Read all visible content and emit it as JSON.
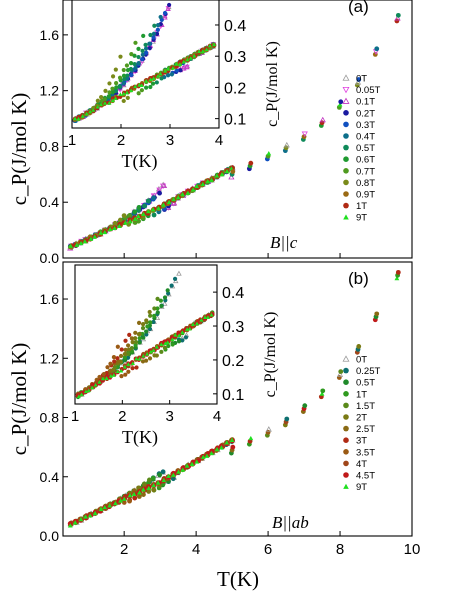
{
  "figure": {
    "xlabel": "T(K)",
    "xticks": [
      "2",
      "4",
      "6",
      "8",
      "10"
    ],
    "xlim": [
      0.3,
      10.0
    ]
  },
  "chart_data": [
    {
      "id": "a",
      "type": "scatter",
      "panel_label": "(a)",
      "field_annotation": "B||c",
      "ylabel": "c_P(J/mol K)",
      "ylim": [
        0.0,
        1.85
      ],
      "yticks": [
        "0.0",
        "0.4",
        "0.8",
        "1.2",
        "1.6"
      ],
      "legend_position": "right",
      "series": [
        {
          "name": "0T",
          "color": "#9a9a9a",
          "marker": "tri-up-open"
        },
        {
          "name": "0.05T",
          "color": "#e040e0",
          "marker": "tri-down-open"
        },
        {
          "name": "0.1T",
          "color": "#c030c0",
          "marker": "tri-up-open"
        },
        {
          "name": "0.2T",
          "color": "#1a1aa0",
          "marker": "circle"
        },
        {
          "name": "0.3T",
          "color": "#1050c0",
          "marker": "circle"
        },
        {
          "name": "0.4T",
          "color": "#0d6f8a",
          "marker": "circle"
        },
        {
          "name": "0.5T",
          "color": "#0f8a5a",
          "marker": "circle"
        },
        {
          "name": "0.6T",
          "color": "#1f9a30",
          "marker": "circle"
        },
        {
          "name": "0.7T",
          "color": "#4f9a1f",
          "marker": "circle"
        },
        {
          "name": "0.8T",
          "color": "#7a8a1a",
          "marker": "circle"
        },
        {
          "name": "0.9T",
          "color": "#9a6a14",
          "marker": "circle"
        },
        {
          "name": "1T",
          "color": "#b02a14",
          "marker": "circle"
        },
        {
          "name": "9T",
          "color": "#20e020",
          "marker": "tri-up"
        }
      ],
      "main_points": [
        {
          "x": 0.55,
          "y": 0.05
        },
        {
          "x": 0.75,
          "y": 0.07
        },
        {
          "x": 1.0,
          "y": 0.1
        },
        {
          "x": 1.3,
          "y": 0.14
        },
        {
          "x": 1.6,
          "y": 0.18
        },
        {
          "x": 1.9,
          "y": 0.22
        },
        {
          "x": 2.2,
          "y": 0.26
        },
        {
          "x": 2.5,
          "y": 0.3
        },
        {
          "x": 2.8,
          "y": 0.34
        },
        {
          "x": 3.0,
          "y": 0.38
        },
        {
          "x": 3.2,
          "y": 0.38
        },
        {
          "x": 3.5,
          "y": 0.41
        },
        {
          "x": 3.8,
          "y": 0.45
        },
        {
          "x": 4.1,
          "y": 0.48
        },
        {
          "x": 4.5,
          "y": 0.54
        },
        {
          "x": 5.0,
          "y": 0.6
        },
        {
          "x": 5.5,
          "y": 0.66
        },
        {
          "x": 6.0,
          "y": 0.73
        },
        {
          "x": 6.5,
          "y": 0.79
        },
        {
          "x": 7.0,
          "y": 0.87
        },
        {
          "x": 7.5,
          "y": 0.97
        },
        {
          "x": 8.0,
          "y": 1.1
        },
        {
          "x": 8.5,
          "y": 1.26
        },
        {
          "x": 9.0,
          "y": 1.48
        },
        {
          "x": 9.6,
          "y": 1.72
        }
      ],
      "peaks": [
        {
          "field": "0T",
          "Tc": 3.2,
          "height": 0.56
        },
        {
          "field": "0.05T",
          "Tc": 3.2,
          "height": 0.55
        },
        {
          "field": "0.1T",
          "Tc": 3.15,
          "height": 0.53
        },
        {
          "field": "0.2T",
          "Tc": 3.05,
          "height": 0.49
        },
        {
          "field": "0.3T",
          "Tc": 2.95,
          "height": 0.46
        },
        {
          "field": "0.4T",
          "Tc": 2.85,
          "height": 0.44
        },
        {
          "field": "0.5T",
          "Tc": 2.7,
          "height": 0.41
        },
        {
          "field": "0.6T",
          "Tc": 2.5,
          "height": 0.38
        },
        {
          "field": "0.7T",
          "Tc": 2.3,
          "height": 0.34
        },
        {
          "field": "0.8T",
          "Tc": 2.0,
          "height": 0.3
        }
      ],
      "inset": {
        "xlabel": "T(K)",
        "ylabel": "c_P(J/mol K)",
        "xlim": [
          1.0,
          4.0
        ],
        "ylim": [
          0.07,
          0.48
        ],
        "xticks": [
          "1",
          "2",
          "3",
          "4"
        ],
        "yticks": [
          "0.1",
          "0.2",
          "0.3",
          "0.4"
        ]
      }
    },
    {
      "id": "b",
      "type": "scatter",
      "panel_label": "(b)",
      "field_annotation": "B||ab",
      "ylabel": "c_P(J/mol K)",
      "ylim": [
        0.0,
        1.85
      ],
      "yticks": [
        "0.0",
        "0.4",
        "0.8",
        "1.2",
        "1.6"
      ],
      "legend_position": "right",
      "series": [
        {
          "name": "0T",
          "color": "#9a9a9a",
          "marker": "tri-up-open"
        },
        {
          "name": "0.25T",
          "color": "#0d6f6f",
          "marker": "circle"
        },
        {
          "name": "0.5T",
          "color": "#1f8a2a",
          "marker": "circle"
        },
        {
          "name": "1T",
          "color": "#2f9a1f",
          "marker": "circle"
        },
        {
          "name": "1.5T",
          "color": "#5a8a1a",
          "marker": "circle"
        },
        {
          "name": "2T",
          "color": "#7a7a14",
          "marker": "circle"
        },
        {
          "name": "2.5T",
          "color": "#8a6a14",
          "marker": "circle"
        },
        {
          "name": "3T",
          "color": "#b02a14",
          "marker": "circle"
        },
        {
          "name": "3.5T",
          "color": "#9a5a14",
          "marker": "circle"
        },
        {
          "name": "4T",
          "color": "#a0461a",
          "marker": "circle"
        },
        {
          "name": "4.5T",
          "color": "#c01a1a",
          "marker": "circle"
        },
        {
          "name": "9T",
          "color": "#20e020",
          "marker": "tri-up"
        }
      ],
      "main_points": [
        {
          "x": 0.55,
          "y": 0.06
        },
        {
          "x": 0.75,
          "y": 0.08
        },
        {
          "x": 1.0,
          "y": 0.1
        },
        {
          "x": 1.3,
          "y": 0.14
        },
        {
          "x": 1.6,
          "y": 0.18
        },
        {
          "x": 1.9,
          "y": 0.22
        },
        {
          "x": 2.2,
          "y": 0.26
        },
        {
          "x": 2.5,
          "y": 0.3
        },
        {
          "x": 2.8,
          "y": 0.34
        },
        {
          "x": 3.0,
          "y": 0.37
        },
        {
          "x": 3.3,
          "y": 0.38
        },
        {
          "x": 3.6,
          "y": 0.41
        },
        {
          "x": 4.0,
          "y": 0.46
        },
        {
          "x": 4.5,
          "y": 0.52
        },
        {
          "x": 5.0,
          "y": 0.58
        },
        {
          "x": 5.5,
          "y": 0.64
        },
        {
          "x": 6.0,
          "y": 0.7
        },
        {
          "x": 6.5,
          "y": 0.77
        },
        {
          "x": 7.0,
          "y": 0.86
        },
        {
          "x": 7.5,
          "y": 0.96
        },
        {
          "x": 8.0,
          "y": 1.09
        },
        {
          "x": 8.5,
          "y": 1.26
        },
        {
          "x": 9.0,
          "y": 1.48
        },
        {
          "x": 9.6,
          "y": 1.76
        }
      ],
      "peaks": [
        {
          "field": "0T",
          "Tc": 3.2,
          "height": 0.46
        },
        {
          "field": "0.25T",
          "Tc": 3.15,
          "height": 0.45
        },
        {
          "field": "0.5T",
          "Tc": 3.05,
          "height": 0.43
        },
        {
          "field": "1T",
          "Tc": 2.9,
          "height": 0.4
        },
        {
          "field": "1.5T",
          "Tc": 2.75,
          "height": 0.38
        },
        {
          "field": "2T",
          "Tc": 2.6,
          "height": 0.35
        },
        {
          "field": "2.5T",
          "Tc": 2.4,
          "height": 0.32
        },
        {
          "field": "3T",
          "Tc": 2.15,
          "height": 0.28
        },
        {
          "field": "3.5T",
          "Tc": 1.95,
          "height": 0.25
        }
      ],
      "inset": {
        "xlabel": "T(K)",
        "ylabel": "c_P(J/mol K)",
        "xlim": [
          1.0,
          4.0
        ],
        "ylim": [
          0.07,
          0.48
        ],
        "xticks": [
          "1",
          "2",
          "3",
          "4"
        ],
        "yticks": [
          "0.1",
          "0.2",
          "0.3",
          "0.4"
        ]
      }
    }
  ]
}
